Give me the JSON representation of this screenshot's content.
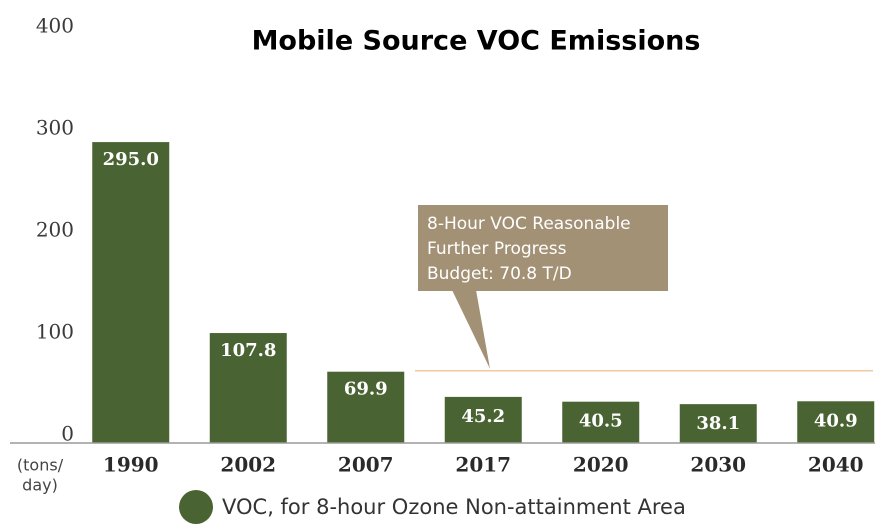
{
  "chart_data": {
    "type": "bar",
    "title": "Mobile Source VOC Emissions",
    "y_axis_label": [
      "(tons/",
      "day)"
    ],
    "categories": [
      "1990",
      "2002",
      "2007",
      "2017",
      "2020",
      "2030",
      "2040"
    ],
    "series": [
      {
        "name": "VOC, for 8-hour Ozone Non-attainment Area",
        "color": "#4a6332",
        "values": [
          295.0,
          107.8,
          69.9,
          45.2,
          40.5,
          38.1,
          40.9
        ],
        "value_labels": [
          "295.0",
          "107.8",
          "69.9",
          "45.2",
          "40.5",
          "38.1",
          "40.9"
        ]
      }
    ],
    "ylim": [
      0,
      400
    ],
    "yticks": [
      0,
      100,
      200,
      300,
      400
    ],
    "reference_line": {
      "value": 70.8,
      "color": "#f2c9a2"
    },
    "annotation": {
      "lines": [
        "8-Hour VOC Reasonable",
        "Further Progress",
        "Budget: 70.8 T/D"
      ],
      "color": "#a39176"
    }
  }
}
